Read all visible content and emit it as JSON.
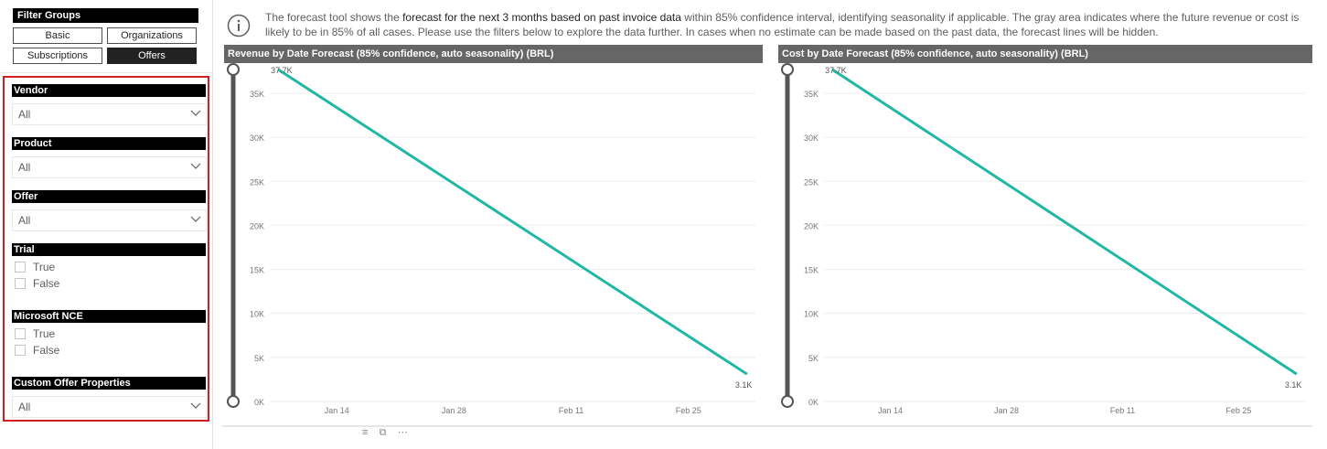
{
  "filter_groups": {
    "title": "Filter Groups",
    "buttons": [
      {
        "label": "Basic",
        "active": false
      },
      {
        "label": "Organizations",
        "active": false
      },
      {
        "label": "Subscriptions",
        "active": false
      },
      {
        "label": "Offers",
        "active": true
      }
    ]
  },
  "filters": {
    "vendor": {
      "label": "Vendor",
      "value": "All"
    },
    "product": {
      "label": "Product",
      "value": "All"
    },
    "offer": {
      "label": "Offer",
      "value": "All"
    },
    "trial": {
      "label": "Trial",
      "options": [
        "True",
        "False"
      ]
    },
    "microsoft_nce": {
      "label": "Microsoft NCE",
      "options": [
        "True",
        "False"
      ]
    },
    "custom_offer_properties": {
      "label": "Custom Offer Properties",
      "value": "All"
    }
  },
  "info": {
    "text_parts": [
      {
        "text": "The forecast tool shows the ",
        "strong": false
      },
      {
        "text": "forecast for the next 3 months based on past invoice data",
        "strong": true
      },
      {
        "text": " within 85% confidence interval, identifying seasonality if applicable. The gray area indicates where the future revenue or cost is likely to be in 85% of all cases. Please use the filters below to explore the data further. In cases when no estimate can be made based on the past data, the forecast lines will be hidden.",
        "strong": false
      }
    ]
  },
  "colors": {
    "line": "#20b8a4",
    "header_bg": "#666666",
    "active_btn": "#222222",
    "highlight_border": "#d21f25"
  },
  "chart_data": [
    {
      "type": "line",
      "title": "Revenue by Date Forecast (85% confidence, auto seasonality) (BRL)",
      "x_ticks": [
        "Jan 14",
        "Jan 28",
        "Feb 11",
        "Feb 25"
      ],
      "y_ticks": [
        "0K",
        "5K",
        "10K",
        "15K",
        "20K",
        "25K",
        "30K",
        "35K"
      ],
      "ylim": [
        0,
        37700
      ],
      "x_range": [
        "2025-01-06",
        "2025-03-05"
      ],
      "series": [
        {
          "x": [
            "2025-01-07",
            "2025-03-04"
          ],
          "y": [
            37700,
            3100
          ]
        }
      ],
      "data_labels": [
        "37.7K",
        "3.1K"
      ]
    },
    {
      "type": "line",
      "title": "Cost by Date Forecast (85% confidence, auto seasonality) (BRL)",
      "x_ticks": [
        "Jan 14",
        "Jan 28",
        "Feb 11",
        "Feb 25"
      ],
      "y_ticks": [
        "0K",
        "5K",
        "10K",
        "15K",
        "20K",
        "25K",
        "30K",
        "35K"
      ],
      "ylim": [
        0,
        37700
      ],
      "x_range": [
        "2025-01-06",
        "2025-03-05"
      ],
      "series": [
        {
          "x": [
            "2025-01-07",
            "2025-03-04"
          ],
          "y": [
            37700,
            3100
          ]
        }
      ],
      "data_labels": [
        "37.7K",
        "3.1K"
      ]
    }
  ]
}
